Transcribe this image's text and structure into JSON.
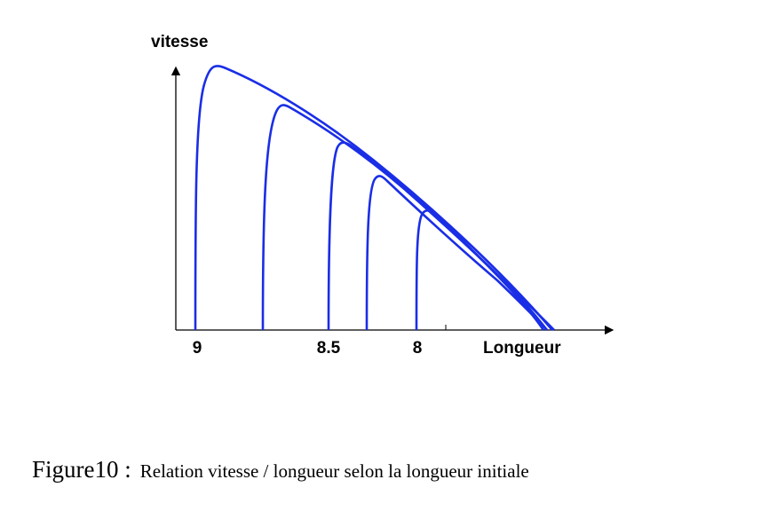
{
  "figure": {
    "y_label": "vitesse",
    "x_label": "Longueur",
    "tick_labels": [
      9,
      8.5,
      8
    ],
    "caption": {
      "number": "Figure10 :",
      "text": "Relation vitesse / longueur selon la longueur initiale"
    }
  }
}
